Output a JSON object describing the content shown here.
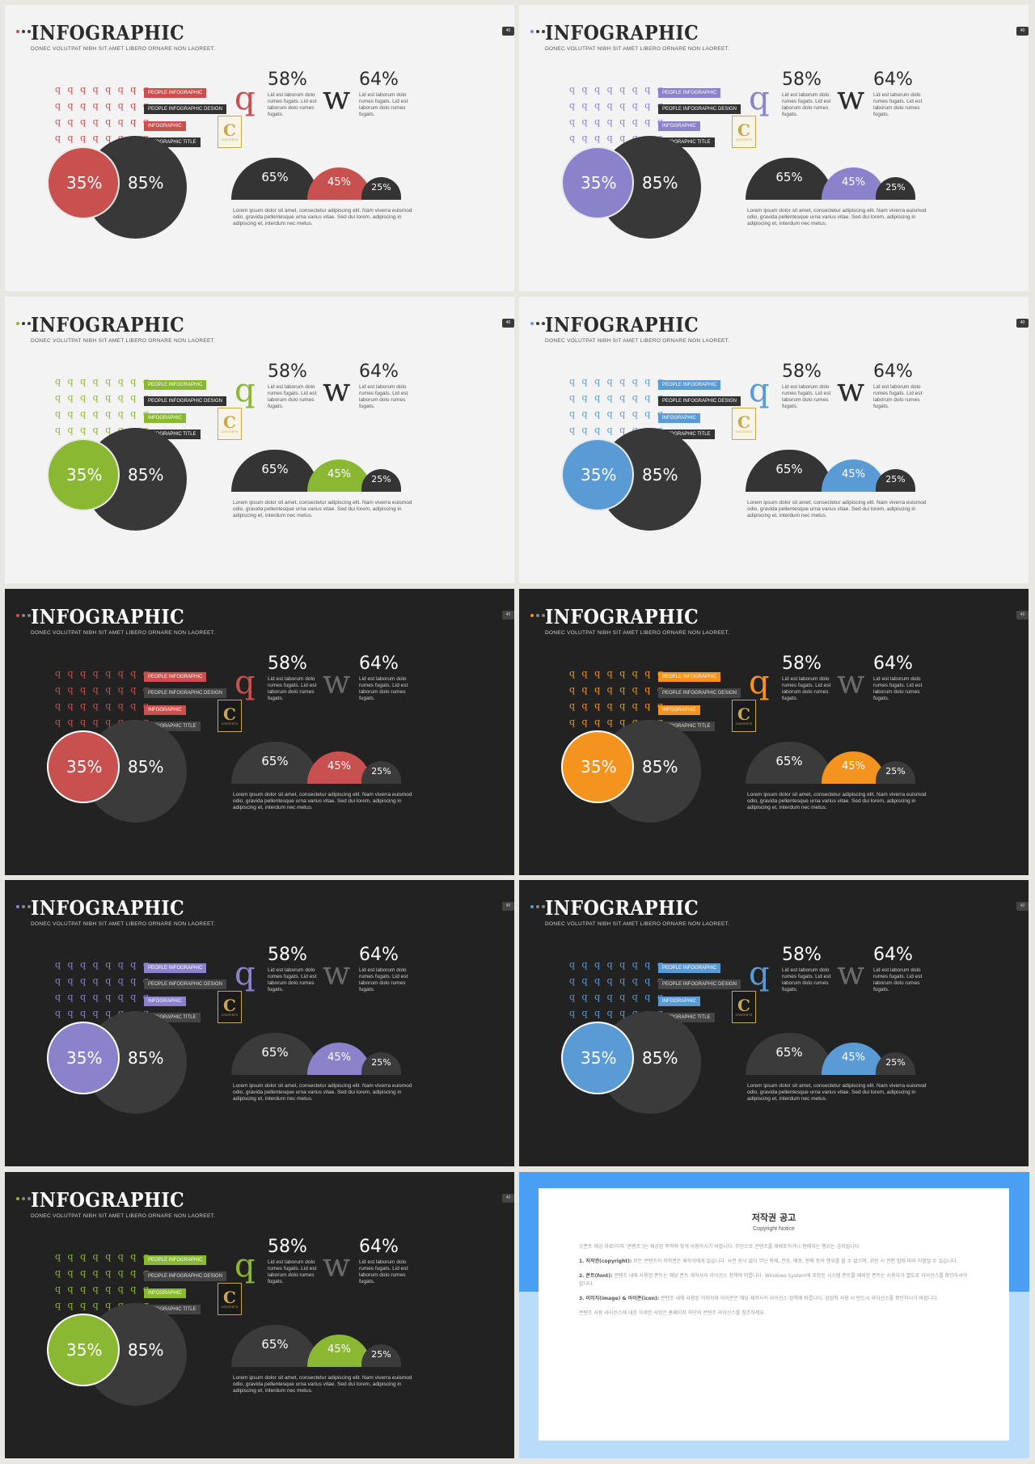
{
  "slides": [
    {
      "theme": "light",
      "accent": "#c8504e",
      "dot_colors": [
        "#c8504e",
        "#3a3a3a",
        "#3a3a3a"
      ]
    },
    {
      "theme": "light",
      "accent": "#8a83cc",
      "dot_colors": [
        "#8a83cc",
        "#3a3a3a",
        "#3a3a3a"
      ]
    },
    {
      "theme": "light",
      "accent": "#8ab833",
      "dot_colors": [
        "#8ab833",
        "#3a3a3a",
        "#3a3a3a"
      ]
    },
    {
      "theme": "light",
      "accent": "#5b9bd5",
      "dot_colors": [
        "#5b9bd5",
        "#3a3a3a",
        "#3a3a3a"
      ]
    },
    {
      "theme": "dark",
      "accent": "#c8504e",
      "dot_colors": [
        "#c8504e",
        "#888888",
        "#888888"
      ]
    },
    {
      "theme": "dark",
      "accent": "#f5931f",
      "dot_colors": [
        "#f5931f",
        "#888888",
        "#888888"
      ]
    },
    {
      "theme": "dark",
      "accent": "#8a83cc",
      "dot_colors": [
        "#8a83cc",
        "#888888",
        "#888888"
      ]
    },
    {
      "theme": "dark",
      "accent": "#5b9bd5",
      "dot_colors": [
        "#5b9bd5",
        "#888888",
        "#888888"
      ]
    },
    {
      "theme": "dark",
      "accent": "#8ab833",
      "dot_colors": [
        "#8ab833",
        "#888888",
        "#888888"
      ]
    }
  ],
  "content": {
    "title": "INFOGRAPHIC",
    "subtitle": "DONEC VOLUTPAT NIBH SIT AMET LIBERO ORNARE NON LAOREET.",
    "page": "40",
    "glyph": "q",
    "letter_q": "q",
    "letter_w": "w",
    "tags": [
      "PEOPLE INFOGRAPHIC",
      "PEOPLE INFOGRAPHIC DESIGN",
      "INFOGRAPHIC",
      "INFOGRAPHIC TITLE"
    ],
    "stat1_pct": "58%",
    "stat2_pct": "64%",
    "stat_desc": "Lid est laborum dolo rumes fugats. Lid est laborum dolo rumes fugats.",
    "venn_small": "35%",
    "venn_big": "85%",
    "dome1": "65%",
    "dome2": "45%",
    "dome3": "25%",
    "lorem": "Lorem ipsum dolor sit amet, consectetur adipiscing elit. Nam viverra euismod odio, gravida pellentesque urna varius vitae. Sed dui lorem, adipiscing in adipiscing et, interdum nec metus.",
    "logo_letter": "C",
    "logo_text": "CONTENTS"
  },
  "notice": {
    "title": "저작권 공고",
    "subtitle": "Copyright Notice",
    "intro": "굿폰트 제공 자료(이하 ‘콘텐츠’)는 제공된 목적에 맞게 사용하시기 바랍니다. 무단으로 콘텐츠를 재배포하거나 판매하는 행위는 금지됩니다.",
    "p1_head": "1. 저작권(copyright):",
    "p1": " 모든 콘텐츠의 저작권은 제작자에게 있습니다. 사전 승낙 없이 무단 복제, 전송, 배포, 판매 등의 행위를 할 수 없으며, 위반 시 관련 법에 따라 처벌될 수 있습니다.",
    "p2_head": "2. 폰트(font):",
    "p2": " 콘텐츠 내에 사용된 폰트는 해당 폰트 제작사의 라이선스 정책에 따릅니다. Windows System에 포함된 시스템 폰트를 제외한 폰트는 사용자가 별도로 라이선스를 확인하셔야 합니다.",
    "p3_head": "3. 이미지(image) & 아이콘(icon):",
    "p3": " 콘텐츠 내에 사용된 이미지와 아이콘은 해당 제작사의 라이선스 정책에 따릅니다. 상업적 사용 시 반드시 라이선스를 확인하시기 바랍니다.",
    "outro": "콘텐츠 사용 라이선스에 대한 자세한 사항은 홈페이지 하단의 콘텐츠 라이선스를 참조하세요."
  }
}
